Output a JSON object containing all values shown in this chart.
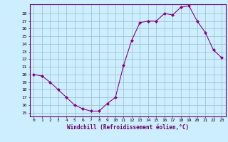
{
  "x": [
    0,
    1,
    2,
    3,
    4,
    5,
    6,
    7,
    8,
    9,
    10,
    11,
    12,
    13,
    14,
    15,
    16,
    17,
    18,
    19,
    20,
    21,
    22,
    23
  ],
  "y": [
    20.0,
    19.8,
    19.0,
    18.0,
    17.0,
    16.0,
    15.5,
    15.2,
    15.2,
    16.2,
    17.0,
    21.2,
    24.5,
    26.8,
    27.0,
    27.0,
    28.0,
    27.8,
    28.8,
    29.0,
    27.0,
    25.5,
    23.2,
    22.2
  ],
  "line_color": "#880088",
  "marker": "D",
  "marker_size": 2.0,
  "bg_color": "#cceeff",
  "grid_color": "#99bbcc",
  "xlabel": "Windchill (Refroidissement éolien,°C)",
  "ylabel_ticks": [
    15,
    16,
    17,
    18,
    19,
    20,
    21,
    22,
    23,
    24,
    25,
    26,
    27,
    28
  ],
  "ylim": [
    14.5,
    29.2
  ],
  "xlim": [
    -0.5,
    23.5
  ]
}
